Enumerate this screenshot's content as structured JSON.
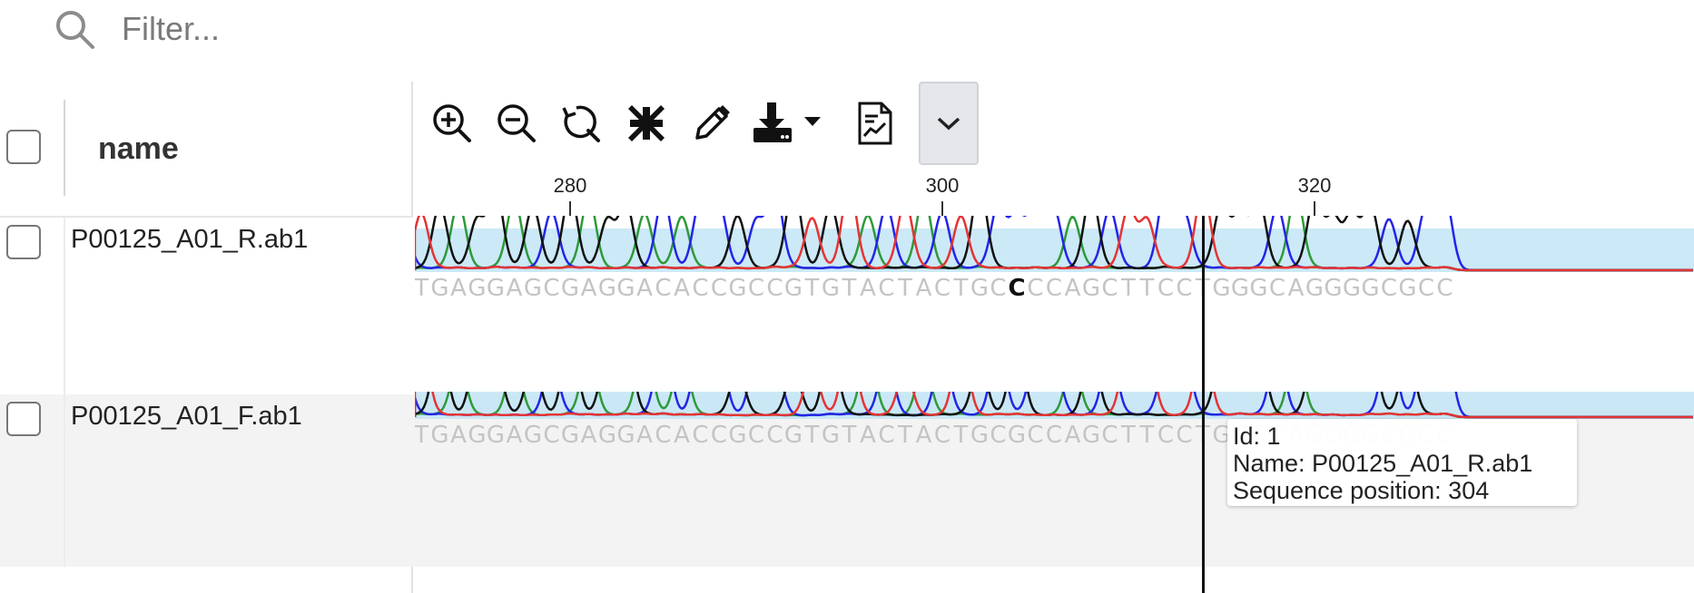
{
  "filter": {
    "placeholder": "Filter...",
    "value": ""
  },
  "grid": {
    "column_header": "name",
    "rows": [
      {
        "name": "P00125_A01_R.ab1"
      },
      {
        "name": "P00125_A01_F.ab1"
      }
    ]
  },
  "toolbar": {
    "icons": [
      "zoom-in-icon",
      "zoom-out-icon",
      "reset-icon",
      "compress-icon",
      "edit-icon",
      "download-icon",
      "report-icon",
      "chevron-down-icon"
    ]
  },
  "ruler": {
    "ticks": [
      {
        "label": "280",
        "position": 280
      },
      {
        "label": "300",
        "position": 300
      },
      {
        "label": "320",
        "position": 320
      }
    ]
  },
  "tracks": [
    {
      "sequence": "GCCTGAGGAGCGAGGACACCGCCGTGTACTACTGCCCCAGCTTCCTGGGCAGGGGCGCC",
      "highlight_base": "C"
    },
    {
      "sequence": "GCCTGAGGAGCGAGGACACCGCCGTGTACTACTGCGCCAGCTTCCTGGGCAGGGGCGCC"
    }
  ],
  "tooltip": {
    "id_line": "Id: 1",
    "name_line": "Name: P00125_A01_R.ab1",
    "position_line": "Sequence position: 304"
  },
  "colors": {
    "A": "#2e9a3a",
    "C": "#2424e8",
    "G": "#111111",
    "T": "#e43434",
    "quality": "#bfe3f5"
  }
}
